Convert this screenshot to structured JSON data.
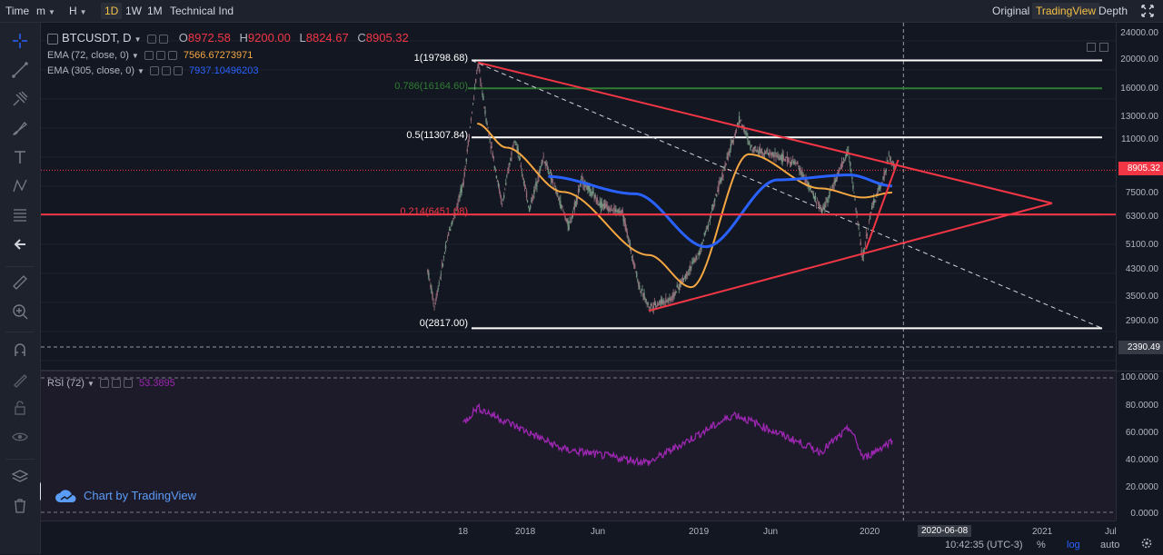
{
  "toolbar": {
    "time_label": "Time",
    "minutes_label": "m",
    "hours_label": "H",
    "intervals": [
      "1D",
      "1W",
      "1M"
    ],
    "indicators_label": "Technical Ind",
    "views": [
      "Original",
      "TradingView",
      "Depth"
    ],
    "active_interval": "1D",
    "active_view": "TradingView"
  },
  "legend": {
    "symbol": "BTCUSDT, D",
    "open_label": "O",
    "open": "8972.58",
    "high_label": "H",
    "high": "9200.00",
    "low_label": "L",
    "low": "8824.67",
    "close_label": "C",
    "close": "8905.32",
    "ema1_label": "EMA (72, close, 0)",
    "ema1_value": "7566.67273971",
    "ema2_label": "EMA (305, close, 0)",
    "ema2_value": "7937.10496203",
    "rsi_label": "RSI (72)",
    "rsi_value": "53.3895"
  },
  "price_axis": {
    "ticks": [
      "24000.00",
      "20000.00",
      "16000.00",
      "13000.00",
      "11000.00",
      "7500.00",
      "6300.00",
      "5100.00",
      "4300.00",
      "3500.00",
      "2900.00"
    ],
    "last_price": "8905.32",
    "cursor_price": "2390.49"
  },
  "rsi_axis": {
    "ticks": [
      "100.0000",
      "80.0000",
      "60.0000",
      "40.0000",
      "20.0000",
      "0.0000"
    ]
  },
  "time_axis": {
    "labels": [
      "18",
      "2018",
      "Jun",
      "2019",
      "Jun",
      "2020",
      "2021",
      "Jul"
    ],
    "cursor_date": "2020-06-08",
    "clock": "10:42:35 (UTC-3)"
  },
  "fib_levels": [
    {
      "label": "1(19798.68)",
      "level": 1,
      "price": 19798.68
    },
    {
      "label": "0.786(16164.60)",
      "level": 0.786,
      "price": 16164.6
    },
    {
      "label": "0.5(11307.84)",
      "level": 0.5,
      "price": 11307.84
    },
    {
      "label": "0.214(6451.08)",
      "level": 0.214,
      "price": 6451.08
    },
    {
      "label": "0(2817.00)",
      "level": 0,
      "price": 2817.0
    }
  ],
  "bottom_controls": {
    "percent": "%",
    "log": "log",
    "auto": "auto"
  },
  "watermark": {
    "text": "Chart by TradingView"
  },
  "colors": {
    "ema72": "#f5a742",
    "ema305": "#2962ff",
    "rsi": "#9c27b0",
    "trendlines": "#f23645",
    "fib_white": "#ffffff",
    "fib_green": "#2e7d32",
    "fib_red": "#f23645",
    "active": "#f5c146"
  },
  "chart_data": {
    "type": "candlestick",
    "symbol": "BTCUSDT",
    "scale": "log",
    "ylim": [
      2390,
      24000
    ],
    "ema72_approx": [
      {
        "x": "2017-12",
        "y": 12500
      },
      {
        "x": "2018-02",
        "y": 10500
      },
      {
        "x": "2018-06",
        "y": 7600
      },
      {
        "x": "2018-12",
        "y": 4800
      },
      {
        "x": "2019-03",
        "y": 3800
      },
      {
        "x": "2019-07",
        "y": 10000
      },
      {
        "x": "2019-12",
        "y": 7800
      },
      {
        "x": "2020-03",
        "y": 7300
      },
      {
        "x": "2020-05",
        "y": 7566.67
      }
    ],
    "ema305_approx": [
      {
        "x": "2018-05",
        "y": 8500
      },
      {
        "x": "2018-11",
        "y": 7500
      },
      {
        "x": "2019-04",
        "y": 5100
      },
      {
        "x": "2019-09",
        "y": 8300
      },
      {
        "x": "2020-02",
        "y": 8600
      },
      {
        "x": "2020-05",
        "y": 7937.1
      }
    ],
    "rsi_approx": [
      {
        "x": "2017-11",
        "y": 66
      },
      {
        "x": "2017-12",
        "y": 78
      },
      {
        "x": "2018-06",
        "y": 47
      },
      {
        "x": "2018-12",
        "y": 37
      },
      {
        "x": "2019-06",
        "y": 73
      },
      {
        "x": "2019-12",
        "y": 45
      },
      {
        "x": "2020-02",
        "y": 63
      },
      {
        "x": "2020-03",
        "y": 40
      },
      {
        "x": "2020-05",
        "y": 53.39
      }
    ]
  }
}
